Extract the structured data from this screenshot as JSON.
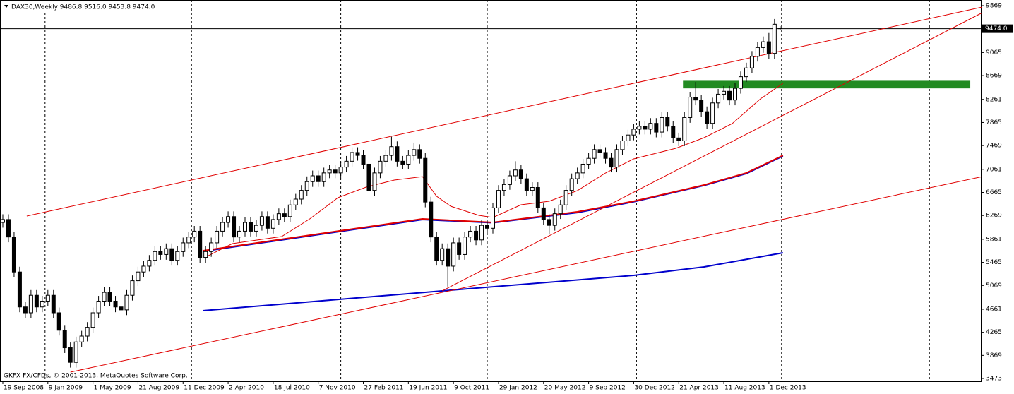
{
  "chart_data": {
    "type": "candlestick",
    "title": "DAX30,Weekly  9486.8 9516.0 9453.8 9474.0",
    "footer": "GKFX FX/CFDs, © 2001-2013, MetaQuotes Software Corp.",
    "xlim": [
      -1,
      347.5
    ],
    "ylim": [
      3425,
      9966
    ],
    "yticks": [
      9869,
      9065,
      8669,
      8261,
      7865,
      7469,
      7061,
      6665,
      6269,
      5861,
      5465,
      5069,
      4661,
      4265,
      3869,
      3473
    ],
    "xticks": [
      {
        "value": 0,
        "label": "19 Sep 2008"
      },
      {
        "value": 16,
        "label": "9 Jan 2009"
      },
      {
        "value": 32,
        "label": "1 May 2009"
      },
      {
        "value": 48,
        "label": "21 Aug 2009"
      },
      {
        "value": 64,
        "label": "11 Dec 2009"
      },
      {
        "value": 80,
        "label": "2 Apr 2010"
      },
      {
        "value": 96,
        "label": "18 Jul 2010"
      },
      {
        "value": 112,
        "label": "7 Nov 2010"
      },
      {
        "value": 128,
        "label": "27 Feb 2011"
      },
      {
        "value": 144,
        "label": "19 Jun 2011"
      },
      {
        "value": 160,
        "label": "9 Oct 2011"
      },
      {
        "value": 176,
        "label": "29 Jan 2012"
      },
      {
        "value": 192,
        "label": "20 May 2012"
      },
      {
        "value": 208,
        "label": "9 Sep 2012"
      },
      {
        "value": 224,
        "label": "30 Dec 2012"
      },
      {
        "value": 240,
        "label": "21 Apr 2013"
      },
      {
        "value": 256,
        "label": "11 Aug 2013"
      },
      {
        "value": 272,
        "label": "1 Dec 2013"
      }
    ],
    "separators": [
      15,
      67,
      120,
      172,
      225,
      276.5,
      329
    ],
    "price_line": {
      "value": 9474,
      "label": "9474.0"
    },
    "bull_fill": "#ffffff",
    "bear_fill": "#000000",
    "x": [
      0,
      2,
      4,
      6,
      8,
      10,
      12,
      14,
      16,
      18,
      20,
      22,
      24,
      26,
      28,
      30,
      32,
      34,
      36,
      38,
      40,
      42,
      44,
      46,
      48,
      50,
      52,
      54,
      56,
      58,
      60,
      62,
      64,
      66,
      68,
      70,
      72,
      74,
      76,
      78,
      80,
      82,
      84,
      86,
      88,
      90,
      92,
      94,
      96,
      98,
      100,
      102,
      104,
      106,
      108,
      110,
      112,
      114,
      116,
      118,
      120,
      122,
      124,
      126,
      128,
      130,
      132,
      134,
      136,
      138,
      140,
      142,
      144,
      146,
      148,
      150,
      152,
      154,
      156,
      158,
      160,
      162,
      164,
      166,
      168,
      170,
      172,
      174,
      176,
      178,
      180,
      182,
      184,
      186,
      188,
      190,
      192,
      194,
      196,
      198,
      200,
      202,
      204,
      206,
      208,
      210,
      212,
      214,
      216,
      218,
      220,
      222,
      224,
      226,
      228,
      230,
      232,
      234,
      236,
      238,
      240,
      242,
      244,
      246,
      248,
      250,
      252,
      254,
      256,
      258,
      260,
      262,
      264,
      266,
      268,
      270,
      272,
      274,
      276
    ],
    "candles": [
      [
        6150,
        6290,
        6060,
        6200
      ],
      [
        6200,
        6290,
        5810,
        5900
      ],
      [
        5900,
        5990,
        5210,
        5300
      ],
      [
        5300,
        5390,
        4610,
        4700
      ],
      [
        4700,
        4790,
        4510,
        4600
      ],
      [
        4600,
        4990,
        4510,
        4900
      ],
      [
        4900,
        4990,
        4610,
        4700
      ],
      [
        4700,
        4890,
        4610,
        4800
      ],
      [
        4800,
        4990,
        4710,
        4900
      ],
      [
        4900,
        4990,
        4510,
        4600
      ],
      [
        4600,
        4690,
        4210,
        4300
      ],
      [
        4300,
        4390,
        3910,
        4000
      ],
      [
        4000,
        4090,
        3660,
        3750
      ],
      [
        3750,
        4190,
        3660,
        4100
      ],
      [
        4100,
        4290,
        4010,
        4200
      ],
      [
        4200,
        4440,
        4110,
        4350
      ],
      [
        4350,
        4690,
        4260,
        4600
      ],
      [
        4600,
        4890,
        4510,
        4800
      ],
      [
        4800,
        5040,
        4710,
        4950
      ],
      [
        4950,
        5040,
        4710,
        4800
      ],
      [
        4800,
        4890,
        4610,
        4700
      ],
      [
        4700,
        4790,
        4560,
        4650
      ],
      [
        4650,
        4990,
        4560,
        4900
      ],
      [
        4900,
        5240,
        4810,
        5150
      ],
      [
        5150,
        5390,
        5060,
        5300
      ],
      [
        5300,
        5490,
        5210,
        5400
      ],
      [
        5400,
        5590,
        5310,
        5500
      ],
      [
        5500,
        5740,
        5410,
        5650
      ],
      [
        5650,
        5740,
        5510,
        5600
      ],
      [
        5600,
        5790,
        5510,
        5700
      ],
      [
        5700,
        5790,
        5410,
        5500
      ],
      [
        5500,
        5740,
        5410,
        5650
      ],
      [
        5650,
        5890,
        5560,
        5800
      ],
      [
        5800,
        5990,
        5710,
        5900
      ],
      [
        5900,
        6090,
        5810,
        6000
      ],
      [
        6000,
        6090,
        5460,
        5550
      ],
      [
        5550,
        5740,
        5460,
        5650
      ],
      [
        5650,
        5890,
        5560,
        5800
      ],
      [
        5800,
        6090,
        5710,
        6000
      ],
      [
        6000,
        6240,
        5910,
        6150
      ],
      [
        6150,
        6340,
        6060,
        6250
      ],
      [
        6250,
        6340,
        5810,
        5900
      ],
      [
        5900,
        6090,
        5810,
        6000
      ],
      [
        6000,
        6240,
        5910,
        6150
      ],
      [
        6150,
        6240,
        5910,
        6000
      ],
      [
        6000,
        6190,
        5910,
        6100
      ],
      [
        6100,
        6340,
        6010,
        6250
      ],
      [
        6250,
        6340,
        5960,
        6050
      ],
      [
        6050,
        6290,
        5960,
        6200
      ],
      [
        6200,
        6390,
        6110,
        6300
      ],
      [
        6300,
        6390,
        6160,
        6250
      ],
      [
        6250,
        6540,
        6160,
        6450
      ],
      [
        6450,
        6640,
        6360,
        6550
      ],
      [
        6550,
        6790,
        6460,
        6700
      ],
      [
        6700,
        6940,
        6610,
        6850
      ],
      [
        6850,
        7040,
        6760,
        6950
      ],
      [
        6950,
        7040,
        6760,
        6850
      ],
      [
        6850,
        7090,
        6760,
        7000
      ],
      [
        7000,
        7140,
        6910,
        7050
      ],
      [
        7050,
        7140,
        6910,
        7000
      ],
      [
        7000,
        7190,
        6910,
        7100
      ],
      [
        7100,
        7290,
        7010,
        7200
      ],
      [
        7200,
        7440,
        7110,
        7350
      ],
      [
        7350,
        7440,
        7210,
        7300
      ],
      [
        7300,
        7390,
        7060,
        7150
      ],
      [
        7150,
        7240,
        6450,
        6700
      ],
      [
        6700,
        7090,
        6610,
        7000
      ],
      [
        7000,
        7290,
        6910,
        7200
      ],
      [
        7200,
        7390,
        7110,
        7300
      ],
      [
        7300,
        7620,
        7210,
        7450
      ],
      [
        7450,
        7540,
        7110,
        7200
      ],
      [
        7200,
        7290,
        7060,
        7150
      ],
      [
        7150,
        7390,
        7060,
        7300
      ],
      [
        7300,
        7520,
        7210,
        7400
      ],
      [
        7400,
        7490,
        7160,
        7250
      ],
      [
        7250,
        7340,
        6410,
        6500
      ],
      [
        6500,
        6590,
        5810,
        5900
      ],
      [
        5900,
        5990,
        5410,
        5500
      ],
      [
        5500,
        5790,
        5410,
        5700
      ],
      [
        5700,
        5790,
        5050,
        5400
      ],
      [
        5400,
        5890,
        5310,
        5800
      ],
      [
        5800,
        5890,
        5510,
        5600
      ],
      [
        5600,
        5990,
        5510,
        5900
      ],
      [
        5900,
        6090,
        5810,
        6000
      ],
      [
        6000,
        6090,
        5760,
        5850
      ],
      [
        5850,
        6190,
        5760,
        6100
      ],
      [
        6100,
        6190,
        5960,
        6050
      ],
      [
        6050,
        6490,
        5960,
        6400
      ],
      [
        6400,
        6790,
        6310,
        6700
      ],
      [
        6700,
        6890,
        6610,
        6800
      ],
      [
        6800,
        7040,
        6710,
        6950
      ],
      [
        6950,
        7200,
        6860,
        7050
      ],
      [
        7050,
        7140,
        6810,
        6900
      ],
      [
        6900,
        6990,
        6610,
        6700
      ],
      [
        6700,
        6840,
        6610,
        6750
      ],
      [
        6750,
        6840,
        6310,
        6400
      ],
      [
        6400,
        6490,
        6110,
        6200
      ],
      [
        6200,
        6290,
        5950,
        6100
      ],
      [
        6100,
        6390,
        6010,
        6300
      ],
      [
        6300,
        6540,
        6210,
        6450
      ],
      [
        6450,
        6790,
        6360,
        6700
      ],
      [
        6700,
        6990,
        6610,
        6900
      ],
      [
        6900,
        7090,
        6810,
        7000
      ],
      [
        7000,
        7240,
        6910,
        7150
      ],
      [
        7150,
        7340,
        7060,
        7250
      ],
      [
        7250,
        7490,
        7160,
        7400
      ],
      [
        7400,
        7490,
        7260,
        7350
      ],
      [
        7350,
        7440,
        7160,
        7250
      ],
      [
        7250,
        7340,
        7010,
        7100
      ],
      [
        7100,
        7490,
        7010,
        7400
      ],
      [
        7400,
        7640,
        7310,
        7550
      ],
      [
        7550,
        7740,
        7460,
        7650
      ],
      [
        7650,
        7840,
        7560,
        7750
      ],
      [
        7750,
        7890,
        7660,
        7800
      ],
      [
        7800,
        7890,
        7660,
        7750
      ],
      [
        7750,
        7940,
        7660,
        7850
      ],
      [
        7850,
        7940,
        7610,
        7700
      ],
      [
        7700,
        8040,
        7610,
        7950
      ],
      [
        7950,
        8040,
        7710,
        7800
      ],
      [
        7800,
        7890,
        7510,
        7600
      ],
      [
        7600,
        7690,
        7460,
        7550
      ],
      [
        7550,
        8040,
        7460,
        7950
      ],
      [
        7950,
        8390,
        7860,
        8300
      ],
      [
        8300,
        8560,
        8160,
        8250
      ],
      [
        8250,
        8340,
        7960,
        8050
      ],
      [
        8050,
        8140,
        7760,
        7850
      ],
      [
        7850,
        8290,
        7760,
        8200
      ],
      [
        8200,
        8440,
        8110,
        8350
      ],
      [
        8350,
        8490,
        8260,
        8400
      ],
      [
        8400,
        8490,
        8160,
        8250
      ],
      [
        8250,
        8540,
        8160,
        8450
      ],
      [
        8450,
        8740,
        8360,
        8650
      ],
      [
        8650,
        8890,
        8560,
        8800
      ],
      [
        8800,
        9090,
        8710,
        9000
      ],
      [
        9000,
        9240,
        8910,
        9150
      ],
      [
        9150,
        9340,
        9060,
        9250
      ],
      [
        9250,
        9400,
        8960,
        9050
      ],
      [
        9050,
        9640,
        8960,
        9550
      ],
      [
        9486.8,
        9516.0,
        9453.8,
        9474.0
      ]
    ],
    "zone": {
      "color": "#228b22",
      "x": [
        241.5,
        343.5
      ],
      "values": [
        8450,
        8580
      ]
    },
    "lines": [
      {
        "color": "#0000cc",
        "width": 2.2,
        "x": [
          71,
          149,
          174,
          204,
          224,
          249,
          264,
          277
        ],
        "values": [
          5655,
          6200,
          6145,
          6320,
          6505,
          6785,
          6990,
          7290
        ]
      },
      {
        "color": "#e00000",
        "width": 2,
        "x": [
          71,
          149,
          174,
          204,
          224,
          249,
          264,
          277
        ],
        "values": [
          5665,
          6211,
          6150,
          6332,
          6514,
          6793,
          7000,
          7300
        ]
      },
      {
        "color": "#0000cc",
        "width": 2,
        "x": [
          71,
          156,
          224,
          249,
          277
        ],
        "values": [
          4636,
          4975,
          5242,
          5387,
          5630
        ]
      },
      {
        "color": "#e00000",
        "width": 1,
        "x": [
          71.5,
          81.5,
          99,
          109,
          119,
          129,
          139,
          149,
          154,
          159,
          169,
          174,
          184,
          194,
          204,
          214,
          224,
          239,
          249,
          259,
          269,
          277
        ],
        "values": [
          5544,
          5787,
          5908,
          6211,
          6574,
          6756,
          6877,
          6937,
          6600,
          6429,
          6271,
          6235,
          6453,
          6514,
          6695,
          6998,
          7240,
          7422,
          7604,
          7846,
          8270,
          8536
        ]
      },
      {
        "color": "#e00000",
        "width": 1,
        "x": [
          8.5,
          347.75
        ],
        "values": [
          6259,
          9845
        ]
      },
      {
        "color": "#e00000",
        "width": 1,
        "x": [
          24,
          347.75
        ],
        "values": [
          3582,
          6937
        ]
      },
      {
        "color": "#e00000",
        "width": 1,
        "x": [
          156,
          347.75
        ],
        "values": [
          4975,
          9748
        ]
      }
    ]
  }
}
